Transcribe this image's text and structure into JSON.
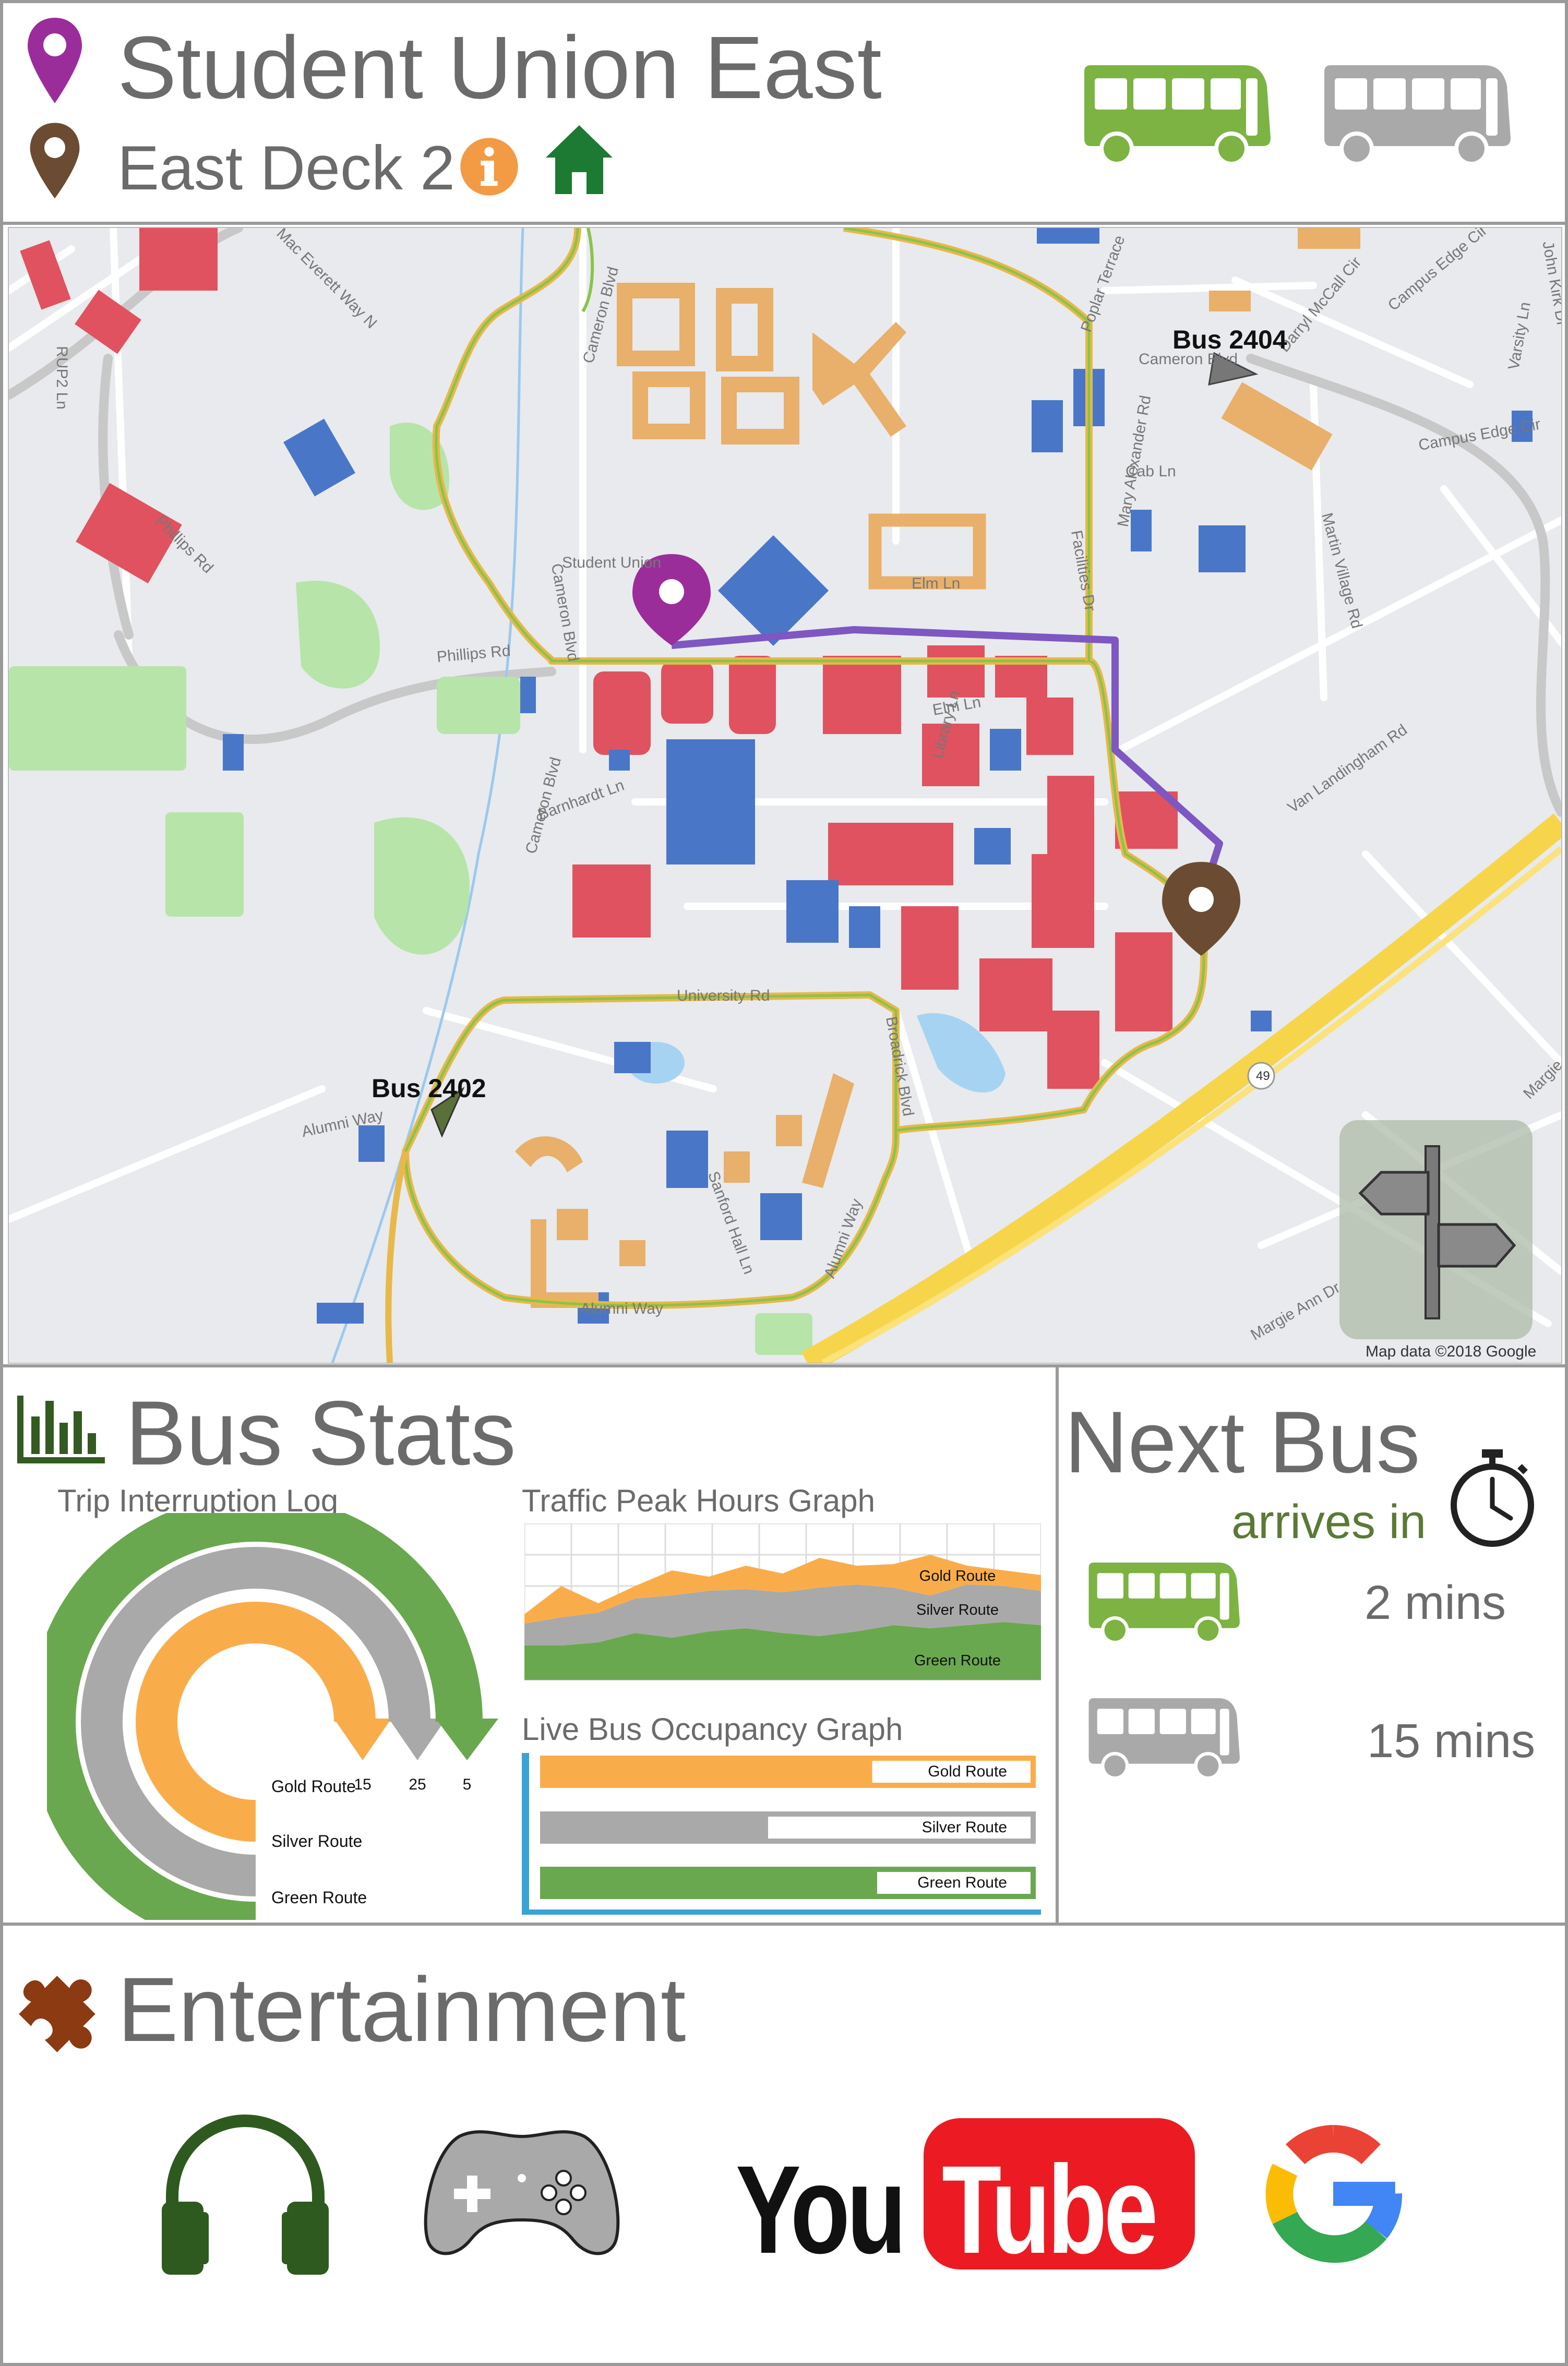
{
  "header": {
    "destination": "Student Union East",
    "origin": "East Deck 2",
    "info_icon": "info-icon",
    "home_icon": "home-icon",
    "destination_pin_color": "#9b2d9b",
    "origin_pin_color": "#6b4c32"
  },
  "route_selector": {
    "green_bus_color": "#7cb342",
    "silver_bus_color": "#a9a9a9"
  },
  "map": {
    "bus_a_label": "Bus 2404",
    "bus_b_label": "Bus 2402",
    "attribution": "Map data ©2018 Google",
    "roads": [
      "Mac Everett Way N",
      "RUP2 Ln",
      "Phillips Rd",
      "Cameron Blvd",
      "Student Union",
      "Elm Ln",
      "Poplar Terrace",
      "Cameron Blvd",
      "Darryl McCall Cir",
      "Campus Edge Cir",
      "John Kirk Dr",
      "Varsity Ln",
      "Cab Ln",
      "Mary Alexander Rd",
      "Facilities Dr",
      "Martin Village Rd",
      "Van Landingham Rd",
      "Library Ln",
      "Barnhardt Ln",
      "University Rd",
      "Broadrick Blvd",
      "Alumni Way",
      "Sanford Hall Ln",
      "Margie Ann Dr",
      "49"
    ],
    "colors": {
      "gold_route": "#e8b84a",
      "green_route": "#8bc34a",
      "trip_path": "#7e57c2",
      "highway": "#f7d54a",
      "water": "#a7d3f3",
      "park": "#b7e4a9",
      "red_building": "#e0525f",
      "blue_building": "#4a76c8",
      "gold_building": "#e8b06a"
    }
  },
  "bus_stats": {
    "title": "Bus Stats",
    "trip_log_title": "Trip Interruption Log",
    "peak_title": "Traffic Peak Hours Graph",
    "occupancy_title": "Live Bus Occupancy Graph"
  },
  "next_bus": {
    "title": "Next Bus",
    "subtitle": "arrives in",
    "green_eta": "2 mins",
    "silver_eta": "15 mins"
  },
  "entertainment": {
    "title": "Entertainment",
    "youtube_you": "You",
    "youtube_tube": "Tube",
    "apps": [
      "headphones-icon",
      "gamepad-icon",
      "youtube-logo",
      "google-logo"
    ]
  },
  "chart_data": [
    {
      "type": "bar",
      "chart": "radial-bar",
      "title": "Trip Interruption Log",
      "categories": [
        "Gold Route",
        "Silver Route",
        "Green Route"
      ],
      "values": [
        15,
        25,
        5
      ],
      "colors": [
        "#f9ad4a",
        "#a9a9a9",
        "#6aa84f"
      ]
    },
    {
      "type": "area",
      "title": "Traffic Peak Hours Graph",
      "stacked": true,
      "grid": true,
      "x": [
        0,
        1,
        2,
        3,
        4,
        5,
        6,
        7,
        8,
        9,
        10,
        11,
        12,
        13,
        14
      ],
      "series": [
        {
          "name": "Green Route",
          "values": [
            22,
            22,
            24,
            30,
            27,
            31,
            33,
            30,
            28,
            31,
            35,
            33,
            35,
            37,
            35
          ]
        },
        {
          "name": "Silver Route",
          "values": [
            14,
            18,
            19,
            22,
            27,
            26,
            25,
            26,
            31,
            30,
            24,
            21,
            26,
            23,
            22
          ]
        },
        {
          "name": "Gold Route",
          "values": [
            6,
            20,
            6,
            8,
            16,
            9,
            15,
            12,
            19,
            12,
            15,
            26,
            12,
            10,
            10
          ]
        }
      ],
      "colors": [
        "#6aa84f",
        "#a9a9a9",
        "#f9ad4a"
      ],
      "ylim": [
        0,
        100
      ]
    },
    {
      "type": "bar",
      "orientation": "horizontal",
      "title": "Live Bus Occupancy Graph",
      "categories": [
        "Gold Route",
        "Silver Route",
        "Green Route"
      ],
      "values": [
        0.67,
        0.46,
        0.68
      ],
      "colors": [
        "#f9ad4a",
        "#a9a9a9",
        "#6aa84f"
      ]
    }
  ]
}
